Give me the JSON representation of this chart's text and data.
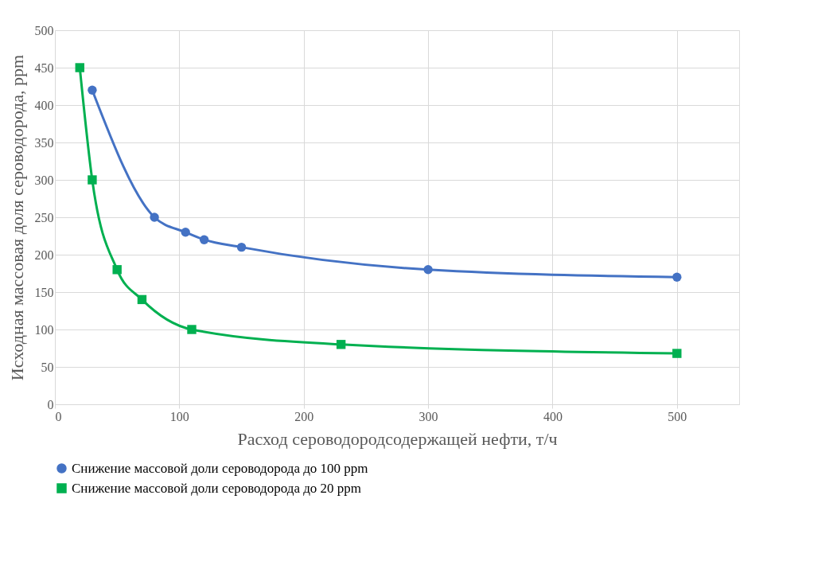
{
  "chart_data": {
    "type": "line",
    "xlabel": "Расход сероводородсодержащей нефти, т/ч",
    "ylabel": "Исходная массовая доля сероводорода, ppm",
    "series": [
      {
        "name": "Снижение массовой доли сероводорода до 100 ppm",
        "color": "#4472c4",
        "marker": "circle",
        "x": [
          30,
          80,
          105,
          120,
          150,
          300,
          500
        ],
        "values": [
          420,
          250,
          230,
          220,
          210,
          180,
          170
        ]
      },
      {
        "name": "Снижение массовой доли сероводорода до 20 ppm",
        "color": "#00b050",
        "marker": "square",
        "x": [
          20,
          30,
          50,
          70,
          110,
          230,
          500
        ],
        "values": [
          450,
          300,
          180,
          140,
          100,
          80,
          68
        ]
      }
    ],
    "xlim": [
      0,
      550
    ],
    "xticks": [
      0,
      100,
      200,
      300,
      400,
      500
    ],
    "ylim": [
      0,
      500
    ],
    "yticks": [
      0,
      50,
      100,
      150,
      200,
      250,
      300,
      350,
      400,
      450,
      500
    ],
    "grid": true,
    "legend": "bottom",
    "line_style": "solid"
  }
}
